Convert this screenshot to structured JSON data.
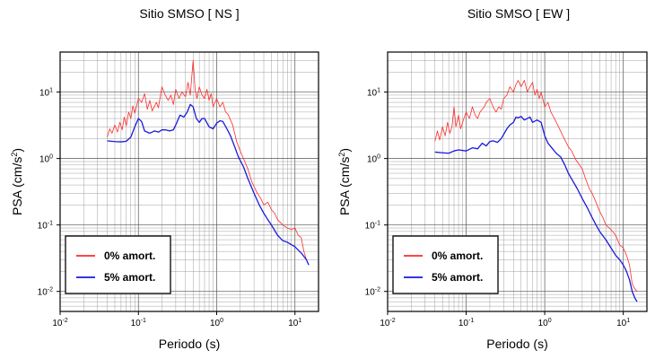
{
  "chart_data": [
    {
      "type": "line",
      "title": "Sitio SMSO [ NS ]",
      "xlabel": "Periodo (s)",
      "ylabel": "PSA (cm/s2)",
      "xscale": "log",
      "yscale": "log",
      "xlim": [
        0.01,
        20
      ],
      "ylim": [
        0.005,
        40
      ],
      "grid": true,
      "legend_position": "bottom-left",
      "x_ticks": [
        {
          "base": "10",
          "exp": "-2"
        },
        {
          "base": "10",
          "exp": "-1"
        },
        {
          "base": "10",
          "exp": "0"
        },
        {
          "base": "10",
          "exp": "1"
        }
      ],
      "y_ticks": [
        {
          "base": "10",
          "exp": "-2"
        },
        {
          "base": "10",
          "exp": "-1"
        },
        {
          "base": "10",
          "exp": "0"
        },
        {
          "base": "10",
          "exp": "1"
        }
      ],
      "series": [
        {
          "name": "0% amort.",
          "color": "#ff2a2a",
          "width": 0.8,
          "points": [
            [
              0.04,
              2.1
            ],
            [
              0.043,
              2.8
            ],
            [
              0.046,
              2.4
            ],
            [
              0.05,
              3.2
            ],
            [
              0.054,
              2.5
            ],
            [
              0.058,
              3.5
            ],
            [
              0.062,
              2.7
            ],
            [
              0.066,
              4.2
            ],
            [
              0.07,
              3.1
            ],
            [
              0.075,
              5
            ],
            [
              0.08,
              4
            ],
            [
              0.085,
              6.2
            ],
            [
              0.09,
              4.8
            ],
            [
              0.1,
              8
            ],
            [
              0.11,
              7
            ],
            [
              0.12,
              9.5
            ],
            [
              0.13,
              5.5
            ],
            [
              0.14,
              7.5
            ],
            [
              0.15,
              5.2
            ],
            [
              0.17,
              7
            ],
            [
              0.18,
              5.8
            ],
            [
              0.2,
              12
            ],
            [
              0.22,
              9
            ],
            [
              0.24,
              7.5
            ],
            [
              0.26,
              9
            ],
            [
              0.28,
              6.5
            ],
            [
              0.3,
              11
            ],
            [
              0.33,
              8
            ],
            [
              0.36,
              10
            ],
            [
              0.4,
              8.5
            ],
            [
              0.43,
              14
            ],
            [
              0.46,
              9
            ],
            [
              0.5,
              30
            ],
            [
              0.53,
              11
            ],
            [
              0.56,
              8
            ],
            [
              0.6,
              12
            ],
            [
              0.65,
              9
            ],
            [
              0.7,
              8
            ],
            [
              0.75,
              11
            ],
            [
              0.8,
              7.5
            ],
            [
              0.85,
              9.5
            ],
            [
              0.9,
              6
            ],
            [
              1,
              8
            ],
            [
              1.1,
              6
            ],
            [
              1.2,
              7
            ],
            [
              1.3,
              5
            ],
            [
              1.4,
              4.6
            ],
            [
              1.6,
              3.2
            ],
            [
              1.8,
              1.8
            ],
            [
              2,
              1.3
            ],
            [
              2.2,
              1
            ],
            [
              2.5,
              0.7
            ],
            [
              2.8,
              0.45
            ],
            [
              3,
              0.38
            ],
            [
              3.3,
              0.3
            ],
            [
              3.6,
              0.26
            ],
            [
              4,
              0.2
            ],
            [
              4.5,
              0.22
            ],
            [
              5,
              0.17
            ],
            [
              5.5,
              0.15
            ],
            [
              6,
              0.12
            ],
            [
              7,
              0.1
            ],
            [
              8,
              0.09
            ],
            [
              9,
              0.085
            ],
            [
              10,
              0.09
            ],
            [
              11,
              0.07
            ],
            [
              12,
              0.065
            ],
            [
              13,
              0.04
            ],
            [
              14,
              0.03
            ],
            [
              15,
              0.025
            ]
          ]
        },
        {
          "name": "5% amort.",
          "color": "#1a1adc",
          "width": 1.3,
          "points": [
            [
              0.04,
              1.85
            ],
            [
              0.05,
              1.8
            ],
            [
              0.06,
              1.78
            ],
            [
              0.07,
              1.82
            ],
            [
              0.08,
              2.1
            ],
            [
              0.09,
              3
            ],
            [
              0.1,
              4
            ],
            [
              0.11,
              3.6
            ],
            [
              0.12,
              2.6
            ],
            [
              0.14,
              2.4
            ],
            [
              0.16,
              2.6
            ],
            [
              0.18,
              2.5
            ],
            [
              0.2,
              2.7
            ],
            [
              0.22,
              2.7
            ],
            [
              0.25,
              2.6
            ],
            [
              0.28,
              2.7
            ],
            [
              0.3,
              3.2
            ],
            [
              0.34,
              4.5
            ],
            [
              0.38,
              4.2
            ],
            [
              0.42,
              5
            ],
            [
              0.46,
              6.5
            ],
            [
              0.5,
              6
            ],
            [
              0.55,
              4
            ],
            [
              0.6,
              3.5
            ],
            [
              0.65,
              4
            ],
            [
              0.7,
              4
            ],
            [
              0.8,
              3
            ],
            [
              0.9,
              2.8
            ],
            [
              1,
              3.4
            ],
            [
              1.1,
              3.7
            ],
            [
              1.2,
              3.6
            ],
            [
              1.35,
              2.8
            ],
            [
              1.5,
              2.2
            ],
            [
              1.7,
              1.5
            ],
            [
              1.9,
              1.05
            ],
            [
              2.2,
              0.75
            ],
            [
              2.5,
              0.5
            ],
            [
              3,
              0.3
            ],
            [
              3.5,
              0.2
            ],
            [
              4,
              0.15
            ],
            [
              4.5,
              0.12
            ],
            [
              5,
              0.1
            ],
            [
              6,
              0.07
            ],
            [
              7,
              0.058
            ],
            [
              8,
              0.055
            ],
            [
              10,
              0.047
            ],
            [
              12,
              0.038
            ],
            [
              14,
              0.03
            ],
            [
              15,
              0.025
            ]
          ]
        }
      ]
    },
    {
      "type": "line",
      "title": "Sitio SMSO [ EW ]",
      "xlabel": "Periodo (s)",
      "ylabel": "PSA (cm/s2)",
      "xscale": "log",
      "yscale": "log",
      "xlim": [
        0.01,
        20
      ],
      "ylim": [
        0.005,
        40
      ],
      "grid": true,
      "legend_position": "bottom-left",
      "x_ticks": [
        {
          "base": "10",
          "exp": "-2"
        },
        {
          "base": "10",
          "exp": "-1"
        },
        {
          "base": "10",
          "exp": "0"
        },
        {
          "base": "10",
          "exp": "1"
        }
      ],
      "y_ticks": [
        {
          "base": "10",
          "exp": "-2"
        },
        {
          "base": "10",
          "exp": "-1"
        },
        {
          "base": "10",
          "exp": "0"
        },
        {
          "base": "10",
          "exp": "1"
        }
      ],
      "series": [
        {
          "name": "0% amort.",
          "color": "#ff2a2a",
          "width": 0.8,
          "points": [
            [
              0.04,
              1.8
            ],
            [
              0.043,
              2.6
            ],
            [
              0.046,
              1.9
            ],
            [
              0.05,
              3
            ],
            [
              0.054,
              2.2
            ],
            [
              0.058,
              3.5
            ],
            [
              0.062,
              2.4
            ],
            [
              0.066,
              3
            ],
            [
              0.07,
              6
            ],
            [
              0.074,
              3
            ],
            [
              0.08,
              4.5
            ],
            [
              0.085,
              2.8
            ],
            [
              0.09,
              3.5
            ],
            [
              0.1,
              5
            ],
            [
              0.11,
              4
            ],
            [
              0.12,
              6
            ],
            [
              0.13,
              4.5
            ],
            [
              0.14,
              4
            ],
            [
              0.15,
              5
            ],
            [
              0.17,
              6
            ],
            [
              0.18,
              7
            ],
            [
              0.2,
              8
            ],
            [
              0.22,
              6
            ],
            [
              0.24,
              5
            ],
            [
              0.26,
              6
            ],
            [
              0.28,
              5.5
            ],
            [
              0.3,
              8
            ],
            [
              0.33,
              9
            ],
            [
              0.36,
              12
            ],
            [
              0.4,
              10
            ],
            [
              0.43,
              13
            ],
            [
              0.46,
              15
            ],
            [
              0.5,
              12
            ],
            [
              0.55,
              15
            ],
            [
              0.6,
              10
            ],
            [
              0.65,
              12
            ],
            [
              0.7,
              14
            ],
            [
              0.75,
              9
            ],
            [
              0.8,
              11
            ],
            [
              0.85,
              8
            ],
            [
              0.9,
              10
            ],
            [
              1,
              6
            ],
            [
              1.1,
              7
            ],
            [
              1.2,
              5
            ],
            [
              1.3,
              4.2
            ],
            [
              1.5,
              3
            ],
            [
              1.7,
              2.2
            ],
            [
              2,
              1.5
            ],
            [
              2.2,
              1.3
            ],
            [
              2.5,
              0.95
            ],
            [
              3,
              0.7
            ],
            [
              3.3,
              0.5
            ],
            [
              3.7,
              0.35
            ],
            [
              4,
              0.3
            ],
            [
              4.5,
              0.22
            ],
            [
              5,
              0.16
            ],
            [
              5.5,
              0.13
            ],
            [
              6,
              0.1
            ],
            [
              7,
              0.085
            ],
            [
              8,
              0.07
            ],
            [
              9,
              0.05
            ],
            [
              10,
              0.045
            ],
            [
              11,
              0.035
            ],
            [
              12,
              0.025
            ],
            [
              13,
              0.013
            ],
            [
              14,
              0.011
            ],
            [
              15,
              0.01
            ]
          ]
        },
        {
          "name": "5% amort.",
          "color": "#1a1adc",
          "width": 1.3,
          "points": [
            [
              0.04,
              1.25
            ],
            [
              0.05,
              1.22
            ],
            [
              0.06,
              1.2
            ],
            [
              0.07,
              1.3
            ],
            [
              0.08,
              1.35
            ],
            [
              0.1,
              1.3
            ],
            [
              0.12,
              1.45
            ],
            [
              0.14,
              1.4
            ],
            [
              0.16,
              1.7
            ],
            [
              0.18,
              1.55
            ],
            [
              0.2,
              1.8
            ],
            [
              0.22,
              1.85
            ],
            [
              0.25,
              1.75
            ],
            [
              0.28,
              2
            ],
            [
              0.3,
              2.3
            ],
            [
              0.33,
              2.8
            ],
            [
              0.36,
              3.2
            ],
            [
              0.4,
              3.5
            ],
            [
              0.43,
              4.2
            ],
            [
              0.46,
              4.1
            ],
            [
              0.5,
              4.3
            ],
            [
              0.55,
              3.8
            ],
            [
              0.6,
              4
            ],
            [
              0.65,
              4.2
            ],
            [
              0.7,
              3.5
            ],
            [
              0.8,
              3.8
            ],
            [
              0.9,
              3.5
            ],
            [
              1,
              2.2
            ],
            [
              1.1,
              1.7
            ],
            [
              1.2,
              1.5
            ],
            [
              1.4,
              1.2
            ],
            [
              1.6,
              1.05
            ],
            [
              1.8,
              0.8
            ],
            [
              2,
              0.6
            ],
            [
              2.3,
              0.45
            ],
            [
              2.6,
              0.35
            ],
            [
              3,
              0.25
            ],
            [
              3.5,
              0.18
            ],
            [
              4,
              0.13
            ],
            [
              4.5,
              0.1
            ],
            [
              5,
              0.08
            ],
            [
              6,
              0.06
            ],
            [
              7,
              0.045
            ],
            [
              8,
              0.035
            ],
            [
              9,
              0.03
            ],
            [
              10,
              0.025
            ],
            [
              11,
              0.02
            ],
            [
              12,
              0.015
            ],
            [
              13,
              0.01
            ],
            [
              14,
              0.008
            ],
            [
              15,
              0.007
            ]
          ]
        }
      ]
    }
  ]
}
